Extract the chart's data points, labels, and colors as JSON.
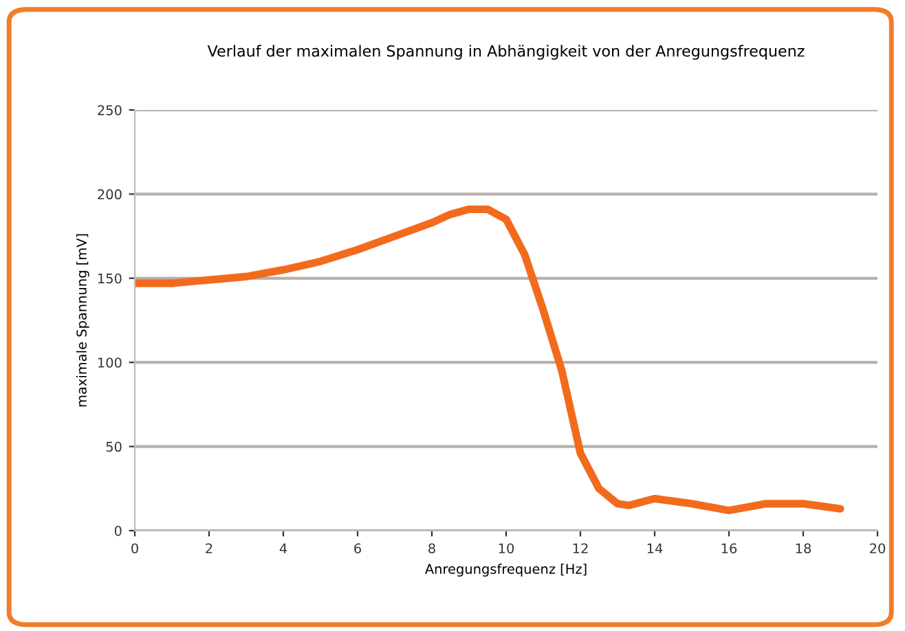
{
  "chart_data": {
    "type": "line",
    "title": "Verlauf der maximalen Spannung in Abhängigkeit von der Anregungsfrequenz",
    "xlabel": "Anregungsfrequenz [Hz]",
    "ylabel": "maximale Spannung [mV]",
    "x": [
      0,
      1,
      2,
      3,
      4,
      5,
      6,
      7,
      8,
      8.5,
      9,
      9.5,
      10,
      10.5,
      11,
      11.5,
      12,
      12.5,
      13,
      13.3,
      14,
      15,
      16,
      17,
      18,
      19
    ],
    "series": [
      {
        "color": "#f26b1d",
        "values": [
          147,
          147,
          149,
          151,
          155,
          160,
          167,
          175,
          183,
          188,
          191,
          191,
          185,
          164,
          131,
          95,
          46,
          25,
          16,
          15,
          19,
          16,
          12,
          16,
          16,
          13
        ]
      }
    ],
    "xlim": [
      0,
      20
    ],
    "xticks": [
      0,
      2,
      4,
      6,
      8,
      10,
      12,
      14,
      16,
      18,
      20
    ],
    "ylim": [
      0,
      250
    ],
    "yticks": [
      0,
      50,
      100,
      150,
      200,
      250
    ],
    "grid": "y",
    "legend": false,
    "marker": "none",
    "line_style": "solid"
  }
}
